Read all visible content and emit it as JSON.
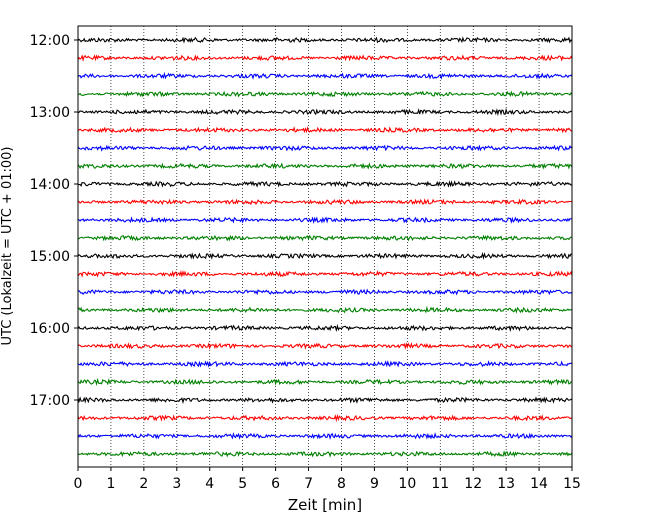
{
  "chart_data": {
    "type": "line",
    "title": "",
    "xlabel": "Zeit  [min]",
    "ylabel": "UTC (Lokalzeit = UTC + 01:00)",
    "xlim": [
      0,
      15
    ],
    "x_ticks": [
      0,
      1,
      2,
      3,
      4,
      5,
      6,
      7,
      8,
      9,
      10,
      11,
      12,
      13,
      14,
      15
    ],
    "x_tick_labels": [
      "0",
      "1",
      "2",
      "3",
      "4",
      "5",
      "6",
      "7",
      "8",
      "9",
      "10",
      "11",
      "12",
      "13",
      "14",
      "15"
    ],
    "y_tick_labels": [
      "12:00",
      "13:00",
      "14:00",
      "15:00",
      "16:00",
      "17:00"
    ],
    "trace_interval_min": 15,
    "trace_start_times": [
      "12:00",
      "12:15",
      "12:30",
      "12:45",
      "13:00",
      "13:15",
      "13:30",
      "13:45",
      "14:00",
      "14:15",
      "14:30",
      "14:45",
      "15:00",
      "15:15",
      "15:30",
      "15:45",
      "16:00",
      "16:15",
      "16:30",
      "16:45",
      "17:00",
      "17:15",
      "17:30",
      "17:45"
    ],
    "trace_colors": [
      "#000000",
      "#ff0000",
      "#0000ff",
      "#008000"
    ],
    "grid": "vertical dotted at each minute",
    "legend": "none"
  }
}
